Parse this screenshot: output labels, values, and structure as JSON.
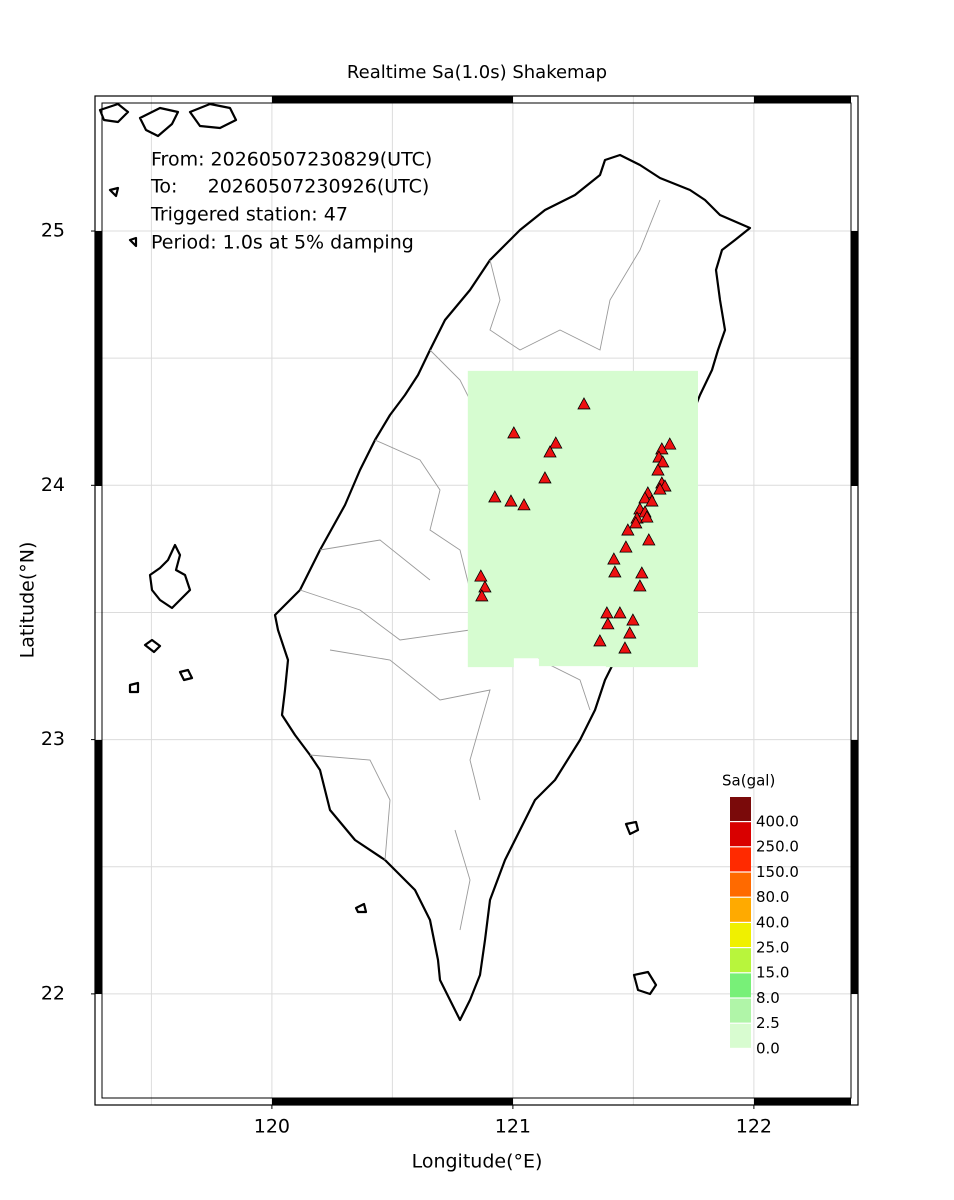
{
  "title": "Realtime Sa(1.0s) Shakemap",
  "info": [
    "From: 20260507230829(UTC)",
    "To:     20260507230926(UTC)",
    "Triggered station: 47",
    "Period: 1.0s at 5% damping"
  ],
  "xlabel": "Longitude(°E)",
  "ylabel": "Latitude(°N)",
  "xlim": [
    119.266,
    122.432
  ],
  "ylim": [
    21.563,
    25.531
  ],
  "xticks": [
    120,
    121,
    122
  ],
  "yticks": [
    22,
    23,
    24,
    25
  ],
  "xgrid": [
    119.5,
    120,
    120.5,
    121,
    121.5,
    122
  ],
  "ygrid": [
    22,
    22.5,
    23,
    23.5,
    24,
    24.5,
    25
  ],
  "shaded_region": {
    "color": "#d6fcd0",
    "lon": [
      120.813,
      121.768,
      121.768,
      121.386,
      121.386,
      121.108,
      121.108,
      121.004,
      121.004,
      120.813
    ],
    "lat": [
      24.45,
      24.45,
      23.285,
      23.285,
      23.289,
      23.289,
      23.32,
      23.32,
      23.285,
      23.285
    ]
  },
  "stations": {
    "color": "#ee1111",
    "lon": [
      121.295,
      121.004,
      121.178,
      121.154,
      121.133,
      120.925,
      120.992,
      121.046,
      121.651,
      121.618,
      121.606,
      121.622,
      121.602,
      121.618,
      121.631,
      121.61,
      121.56,
      121.548,
      121.577,
      121.527,
      121.548,
      121.515,
      121.556,
      121.51,
      121.477,
      121.564,
      121.469,
      121.419,
      121.423,
      121.535,
      121.527,
      121.39,
      121.444,
      121.498,
      121.394,
      121.485,
      121.361,
      121.465,
      120.867,
      120.884,
      120.871
    ],
    "lat": [
      24.32,
      24.206,
      24.166,
      24.131,
      24.029,
      23.954,
      23.938,
      23.923,
      24.162,
      24.143,
      24.111,
      24.092,
      24.06,
      24.009,
      23.997,
      23.985,
      23.97,
      23.95,
      23.938,
      23.907,
      23.895,
      23.871,
      23.875,
      23.852,
      23.824,
      23.785,
      23.757,
      23.71,
      23.659,
      23.655,
      23.604,
      23.498,
      23.498,
      23.47,
      23.455,
      23.419,
      23.388,
      23.36,
      23.643,
      23.6,
      23.565
    ]
  },
  "legend": {
    "title": "Sa(gal)",
    "levels": [
      {
        "value": 400,
        "label": "400.0",
        "color": "#7a0a0a"
      },
      {
        "value": 250,
        "label": "250.0",
        "color": "#d90000"
      },
      {
        "value": 150,
        "label": "150.0",
        "color": "#ff2a00"
      },
      {
        "value": 80,
        "label": "80.0",
        "color": "#ff6a00"
      },
      {
        "value": 40,
        "label": "40.0",
        "color": "#ffaa00"
      },
      {
        "value": 25,
        "label": "25.0",
        "color": "#f0f000"
      },
      {
        "value": 15,
        "label": "15.0",
        "color": "#b8f53c"
      },
      {
        "value": 8,
        "label": "8.0",
        "color": "#78f078"
      },
      {
        "value": 2.5,
        "label": "2.5",
        "color": "#b0f5a8"
      },
      {
        "value": 0,
        "label": "0.0",
        "color": "#d8fcd0"
      }
    ]
  }
}
